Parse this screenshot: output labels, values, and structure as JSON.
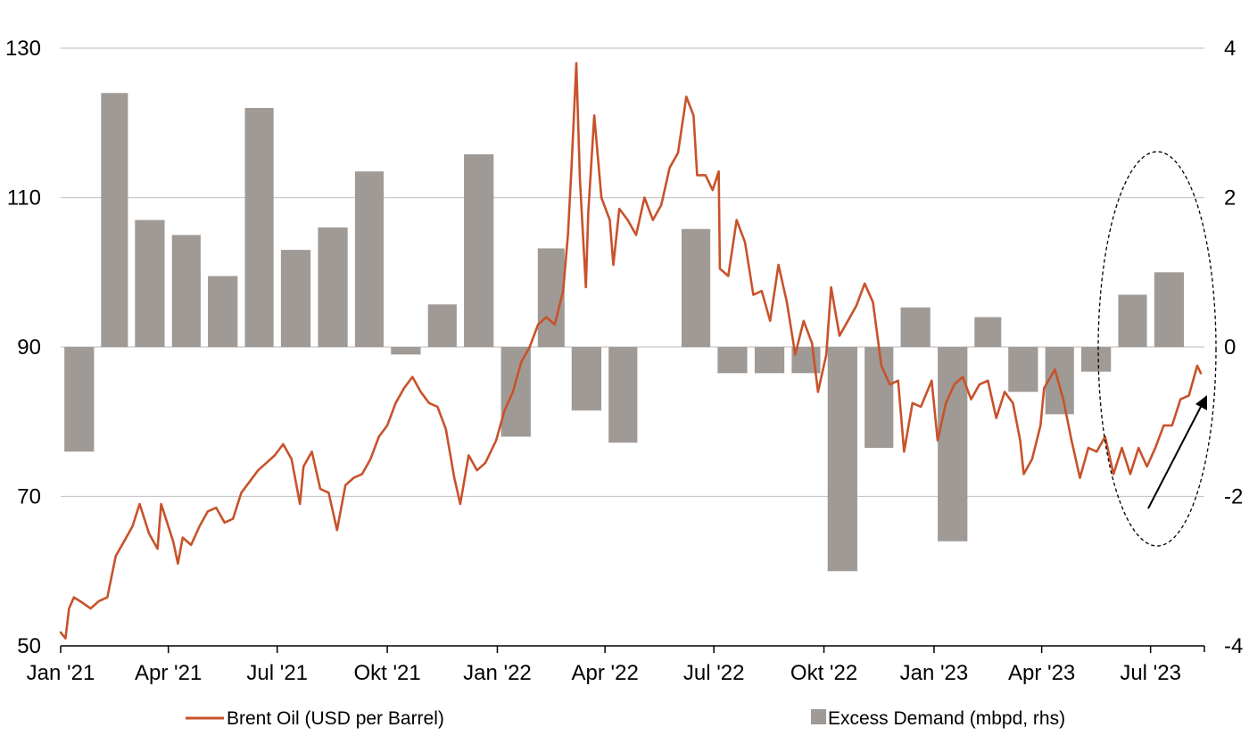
{
  "chart_data": {
    "type": "line+bar",
    "title": "",
    "colors": {
      "line": "#c8522a",
      "bar": "#a09a96",
      "grid": "#c8c8c8"
    },
    "x_axis": {
      "range": [
        "2021-01-01",
        "2023-08-15"
      ],
      "ticks": [
        {
          "date": "2021-01-01",
          "label": "Jan '21"
        },
        {
          "date": "2021-04-01",
          "label": "Apr '21"
        },
        {
          "date": "2021-07-01",
          "label": "Jul '21"
        },
        {
          "date": "2021-10-01",
          "label": "Okt '21"
        },
        {
          "date": "2022-01-01",
          "label": "Jan '22"
        },
        {
          "date": "2022-04-01",
          "label": "Apr '22"
        },
        {
          "date": "2022-07-01",
          "label": "Jul '22"
        },
        {
          "date": "2022-10-01",
          "label": "Okt '22"
        },
        {
          "date": "2023-01-01",
          "label": "Jan '23"
        },
        {
          "date": "2023-04-01",
          "label": "Apr '23"
        },
        {
          "date": "2023-07-01",
          "label": "Jul '23"
        }
      ]
    },
    "y_left": {
      "ticks": [
        "50",
        "70",
        "90",
        "110",
        "130"
      ],
      "range": [
        50,
        130
      ]
    },
    "y_right": {
      "ticks": [
        "-4",
        "-2",
        "0",
        "2",
        "4"
      ],
      "range": [
        -4,
        4
      ]
    },
    "grid": true,
    "legend_position": "bottom",
    "series": [
      {
        "name": "Brent Oil (USD per Barrel)",
        "type": "line",
        "axis": "left",
        "points": [
          [
            "2021-01-01",
            51.8
          ],
          [
            "2021-01-05",
            51.0
          ],
          [
            "2021-01-08",
            55.0
          ],
          [
            "2021-01-12",
            56.5
          ],
          [
            "2021-01-19",
            55.8
          ],
          [
            "2021-01-26",
            55.0
          ],
          [
            "2021-02-02",
            56.0
          ],
          [
            "2021-02-09",
            56.5
          ],
          [
            "2021-02-16",
            62.0
          ],
          [
            "2021-02-23",
            64.0
          ],
          [
            "2021-03-02",
            66.0
          ],
          [
            "2021-03-08",
            69.0
          ],
          [
            "2021-03-16",
            65.0
          ],
          [
            "2021-03-23",
            63.0
          ],
          [
            "2021-03-26",
            69.0
          ],
          [
            "2021-04-05",
            64.0
          ],
          [
            "2021-04-09",
            61.0
          ],
          [
            "2021-04-13",
            64.5
          ],
          [
            "2021-04-20",
            63.5
          ],
          [
            "2021-04-27",
            66.0
          ],
          [
            "2021-05-04",
            68.0
          ],
          [
            "2021-05-11",
            68.5
          ],
          [
            "2021-05-18",
            66.5
          ],
          [
            "2021-05-25",
            67.0
          ],
          [
            "2021-06-01",
            70.5
          ],
          [
            "2021-06-08",
            72.0
          ],
          [
            "2021-06-15",
            73.5
          ],
          [
            "2021-06-22",
            74.5
          ],
          [
            "2021-06-29",
            75.5
          ],
          [
            "2021-07-06",
            77.0
          ],
          [
            "2021-07-13",
            75.0
          ],
          [
            "2021-07-20",
            69.0
          ],
          [
            "2021-07-23",
            74.0
          ],
          [
            "2021-07-30",
            76.0
          ],
          [
            "2021-08-06",
            71.0
          ],
          [
            "2021-08-13",
            70.5
          ],
          [
            "2021-08-20",
            65.5
          ],
          [
            "2021-08-27",
            71.5
          ],
          [
            "2021-09-03",
            72.5
          ],
          [
            "2021-09-10",
            73.0
          ],
          [
            "2021-09-17",
            75.0
          ],
          [
            "2021-09-24",
            78.0
          ],
          [
            "2021-10-01",
            79.5
          ],
          [
            "2021-10-08",
            82.5
          ],
          [
            "2021-10-15",
            84.5
          ],
          [
            "2021-10-22",
            86.0
          ],
          [
            "2021-10-29",
            84.0
          ],
          [
            "2021-11-05",
            82.5
          ],
          [
            "2021-11-12",
            82.0
          ],
          [
            "2021-11-19",
            79.0
          ],
          [
            "2021-11-26",
            72.5
          ],
          [
            "2021-12-01",
            69.0
          ],
          [
            "2021-12-08",
            75.5
          ],
          [
            "2021-12-15",
            73.5
          ],
          [
            "2021-12-22",
            74.5
          ],
          [
            "2021-12-31",
            77.5
          ],
          [
            "2022-01-07",
            81.5
          ],
          [
            "2022-01-14",
            84.0
          ],
          [
            "2022-01-21",
            88.0
          ],
          [
            "2022-01-28",
            90.0
          ],
          [
            "2022-02-04",
            93.0
          ],
          [
            "2022-02-11",
            94.0
          ],
          [
            "2022-02-18",
            93.0
          ],
          [
            "2022-02-25",
            97.5
          ],
          [
            "2022-03-01",
            105.0
          ],
          [
            "2022-03-04",
            114.0
          ],
          [
            "2022-03-08",
            128.0
          ],
          [
            "2022-03-11",
            112.5
          ],
          [
            "2022-03-16",
            98.0
          ],
          [
            "2022-03-18",
            108.0
          ],
          [
            "2022-03-23",
            121.0
          ],
          [
            "2022-03-29",
            110.0
          ],
          [
            "2022-04-05",
            107.0
          ],
          [
            "2022-04-08",
            101.0
          ],
          [
            "2022-04-13",
            108.5
          ],
          [
            "2022-04-20",
            107.0
          ],
          [
            "2022-04-27",
            105.0
          ],
          [
            "2022-05-04",
            110.0
          ],
          [
            "2022-05-11",
            107.0
          ],
          [
            "2022-05-18",
            109.0
          ],
          [
            "2022-05-25",
            114.0
          ],
          [
            "2022-06-01",
            116.0
          ],
          [
            "2022-06-08",
            123.5
          ],
          [
            "2022-06-14",
            121.0
          ],
          [
            "2022-06-17",
            113.0
          ],
          [
            "2022-06-24",
            113.0
          ],
          [
            "2022-06-30",
            111.0
          ],
          [
            "2022-07-05",
            113.5
          ],
          [
            "2022-07-06",
            100.5
          ],
          [
            "2022-07-13",
            99.5
          ],
          [
            "2022-07-20",
            107.0
          ],
          [
            "2022-07-27",
            104.0
          ],
          [
            "2022-08-03",
            97.0
          ],
          [
            "2022-08-10",
            97.5
          ],
          [
            "2022-08-17",
            93.5
          ],
          [
            "2022-08-24",
            101.0
          ],
          [
            "2022-08-31",
            96.0
          ],
          [
            "2022-09-07",
            89.0
          ],
          [
            "2022-09-14",
            93.5
          ],
          [
            "2022-09-21",
            90.5
          ],
          [
            "2022-09-26",
            84.0
          ],
          [
            "2022-10-03",
            89.0
          ],
          [
            "2022-10-07",
            98.0
          ],
          [
            "2022-10-14",
            91.5
          ],
          [
            "2022-10-21",
            93.5
          ],
          [
            "2022-10-28",
            95.5
          ],
          [
            "2022-11-04",
            98.5
          ],
          [
            "2022-11-11",
            96.0
          ],
          [
            "2022-11-18",
            87.5
          ],
          [
            "2022-11-25",
            85.0
          ],
          [
            "2022-12-02",
            85.5
          ],
          [
            "2022-12-07",
            76.0
          ],
          [
            "2022-12-14",
            82.5
          ],
          [
            "2022-12-21",
            82.0
          ],
          [
            "2022-12-30",
            85.5
          ],
          [
            "2023-01-04",
            77.5
          ],
          [
            "2023-01-11",
            82.5
          ],
          [
            "2023-01-18",
            85.0
          ],
          [
            "2023-01-25",
            86.0
          ],
          [
            "2023-02-01",
            83.0
          ],
          [
            "2023-02-08",
            85.0
          ],
          [
            "2023-02-15",
            85.5
          ],
          [
            "2023-02-22",
            80.5
          ],
          [
            "2023-03-01",
            84.0
          ],
          [
            "2023-03-08",
            82.5
          ],
          [
            "2023-03-14",
            77.5
          ],
          [
            "2023-03-17",
            73.0
          ],
          [
            "2023-03-24",
            75.0
          ],
          [
            "2023-03-31",
            79.5
          ],
          [
            "2023-04-03",
            84.5
          ],
          [
            "2023-04-12",
            87.0
          ],
          [
            "2023-04-19",
            83.0
          ],
          [
            "2023-04-26",
            77.5
          ],
          [
            "2023-05-03",
            72.5
          ],
          [
            "2023-05-10",
            76.5
          ],
          [
            "2023-05-17",
            76.0
          ],
          [
            "2023-05-24",
            78.0
          ],
          [
            "2023-05-31",
            73.0
          ],
          [
            "2023-06-07",
            76.5
          ],
          [
            "2023-06-14",
            73.0
          ],
          [
            "2023-06-21",
            76.5
          ],
          [
            "2023-06-28",
            74.0
          ],
          [
            "2023-07-05",
            76.5
          ],
          [
            "2023-07-12",
            79.5
          ],
          [
            "2023-07-19",
            79.5
          ],
          [
            "2023-07-26",
            83.0
          ],
          [
            "2023-08-02",
            83.5
          ],
          [
            "2023-08-09",
            87.5
          ],
          [
            "2023-08-12",
            86.5
          ]
        ]
      },
      {
        "name": "Excess Demand (mbpd, rhs)",
        "type": "bar",
        "axis": "right",
        "bars": [
          [
            "2021-01",
            -1.4
          ],
          [
            "2021-02",
            3.4
          ],
          [
            "2021-03",
            1.7
          ],
          [
            "2021-04",
            1.5
          ],
          [
            "2021-05",
            0.95
          ],
          [
            "2021-06",
            3.2
          ],
          [
            "2021-07",
            1.3
          ],
          [
            "2021-08",
            1.6
          ],
          [
            "2021-09",
            2.35
          ],
          [
            "2021-10",
            -0.1
          ],
          [
            "2021-11",
            0.57
          ],
          [
            "2021-12",
            2.58
          ],
          [
            "2022-01",
            -1.2
          ],
          [
            "2022-02",
            1.32
          ],
          [
            "2022-03",
            -0.85
          ],
          [
            "2022-04",
            -1.28
          ],
          [
            "2022-05",
            null
          ],
          [
            "2022-06",
            1.58
          ],
          [
            "2022-07",
            -0.35
          ],
          [
            "2022-08",
            -0.35
          ],
          [
            "2022-09",
            -0.35
          ],
          [
            "2022-10",
            -3.0
          ],
          [
            "2022-11",
            -1.35
          ],
          [
            "2022-12",
            0.53
          ],
          [
            "2023-01",
            -2.6
          ],
          [
            "2023-02",
            0.4
          ],
          [
            "2023-03",
            -0.6
          ],
          [
            "2023-04",
            -0.9
          ],
          [
            "2023-05",
            -0.33
          ],
          [
            "2023-06",
            0.7
          ],
          [
            "2023-07",
            1.0
          ]
        ]
      }
    ]
  },
  "legend": {
    "line_label": "Brent Oil (USD per Barrel)",
    "bar_label": "Excess Demand (mbpd, rhs)"
  }
}
